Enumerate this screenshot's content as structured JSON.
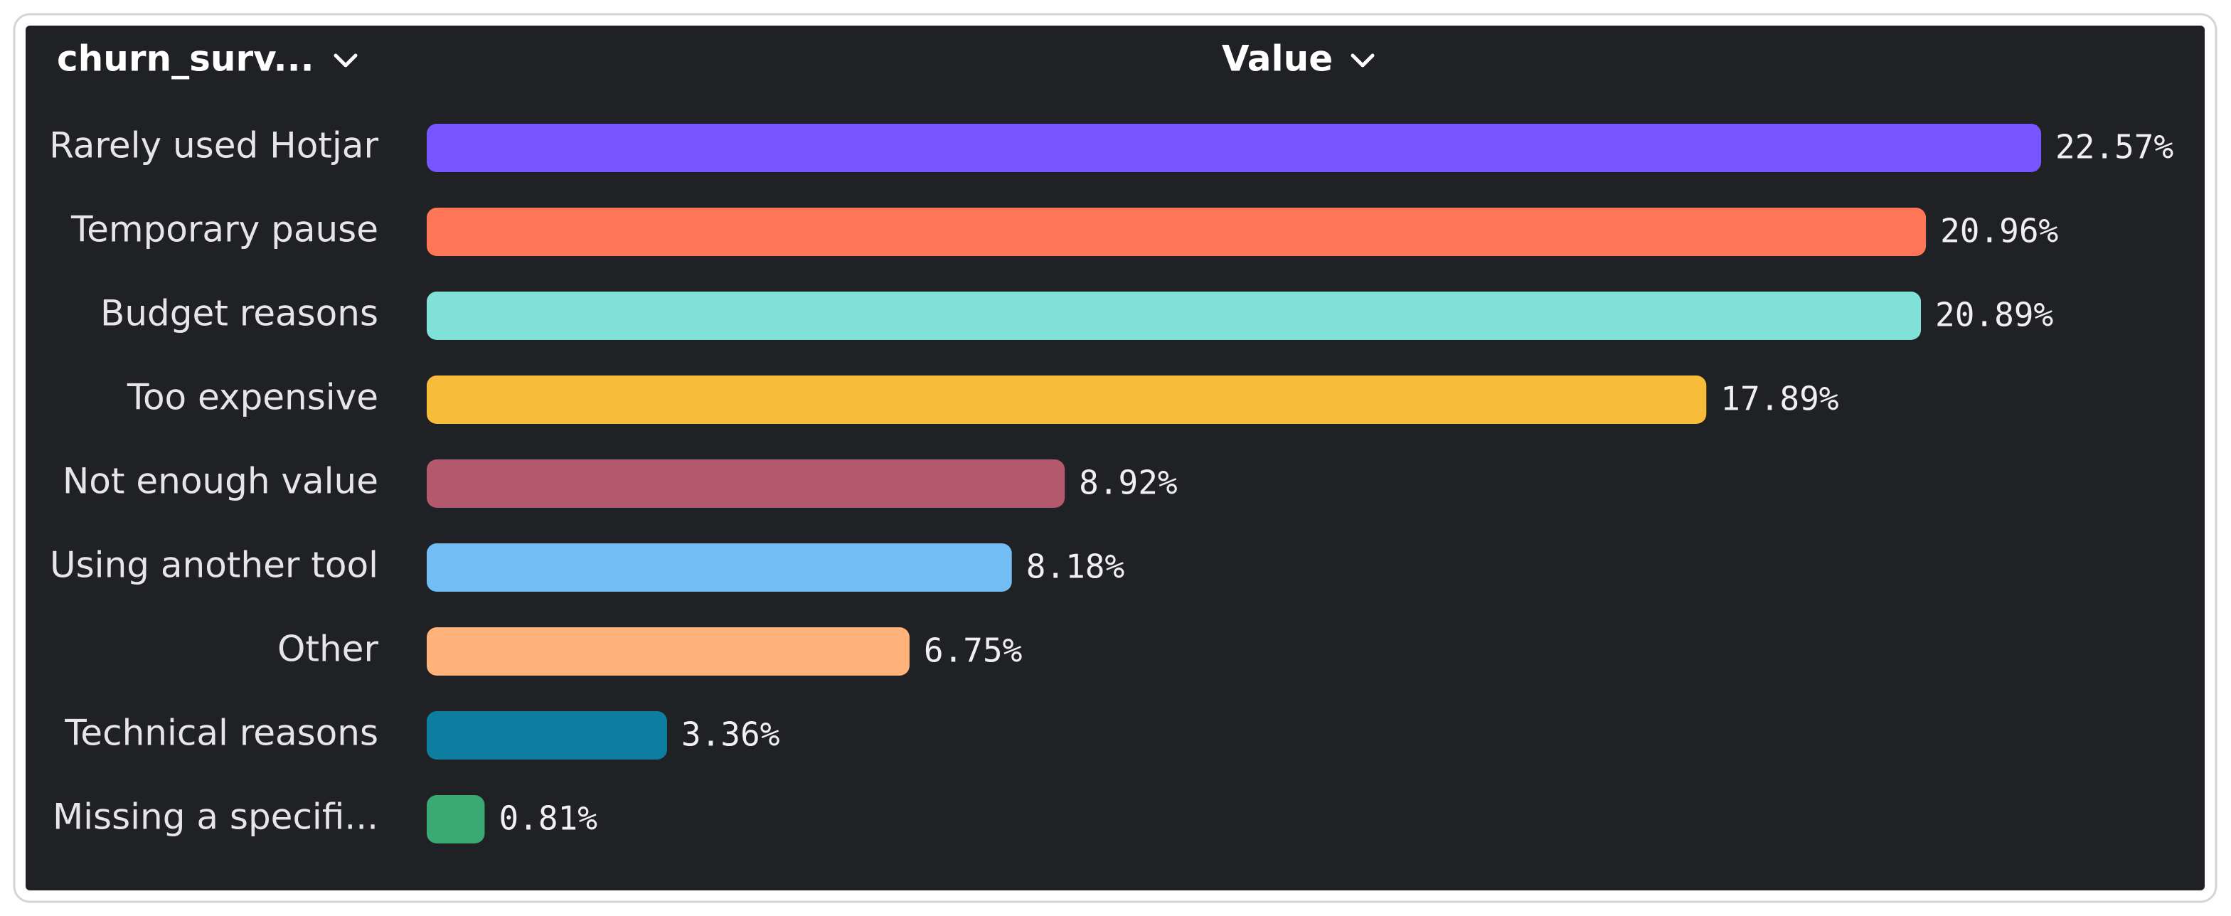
{
  "chart_data": {
    "type": "bar",
    "orientation": "horizontal",
    "category_header": "churn_surv...",
    "value_header": "Value",
    "categories": [
      "Rarely used Hotjar",
      "Temporary pause",
      "Budget reasons",
      "Too expensive",
      "Not enough value",
      "Using another tool",
      "Other",
      "Technical reasons",
      "Missing a specifi..."
    ],
    "values": [
      22.57,
      20.96,
      20.89,
      17.89,
      8.92,
      8.18,
      6.75,
      3.36,
      0.81
    ],
    "value_labels": [
      "22.57%",
      "20.96%",
      "20.89%",
      "17.89%",
      "8.92%",
      "8.18%",
      "6.75%",
      "3.36%",
      "0.81%"
    ],
    "colors": [
      "#7856ff",
      "#ff7557",
      "#80e1d9",
      "#f8bc3b",
      "#b2596e",
      "#72bef4",
      "#ffb27a",
      "#0d7ea0",
      "#3ba974"
    ]
  }
}
